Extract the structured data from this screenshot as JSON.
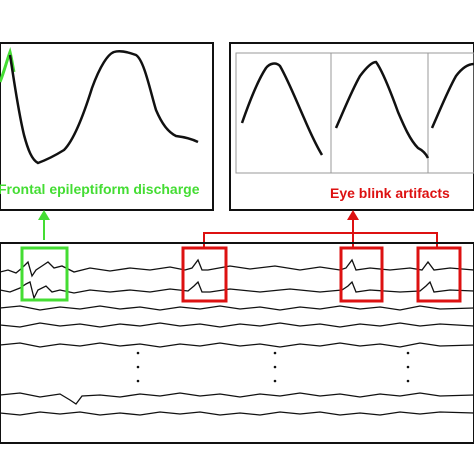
{
  "labels": {
    "frontal": "Frontal epileptiform discharge",
    "blink": "Eye blink artifacts"
  },
  "colors": {
    "green": "#44dd33",
    "red": "#dd1111",
    "trace": "#111111",
    "frame": "#111111",
    "divider": "#999999"
  }
}
